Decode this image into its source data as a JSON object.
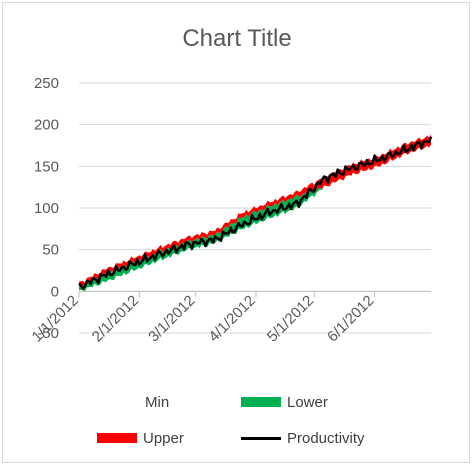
{
  "chart_data": {
    "type": "area",
    "title": "Chart Title",
    "xlabel": "",
    "ylabel": "",
    "ylim": [
      -50,
      250
    ],
    "yticks": [
      -50,
      0,
      50,
      100,
      150,
      200,
      250
    ],
    "grid": true,
    "legend_position": "bottom",
    "x_tick_labels": [
      "1/1/2012",
      "2/1/2012",
      "3/1/2012",
      "4/1/2012",
      "5/1/2012",
      "6/1/2012"
    ],
    "x_tick_days": [
      0,
      31,
      60,
      91,
      121,
      152
    ],
    "x_range_days": [
      0,
      181
    ],
    "x": [
      "1/1/2012",
      "1/15/2012",
      "1/29/2012",
      "2/12/2012",
      "2/26/2012",
      "3/11/2012",
      "3/25/2012",
      "4/8/2012",
      "4/22/2012",
      "5/6/2012",
      "5/20/2012",
      "6/3/2012",
      "6/17/2012",
      "6/30/2012"
    ],
    "series": [
      {
        "name": "Min",
        "color": "#ffffff",
        "values": [
          0,
          12,
          25,
          38,
          50,
          58,
          75,
          88,
          100,
          125,
          140,
          150,
          165,
          175
        ]
      },
      {
        "name": "Lower",
        "color": "#00b050",
        "values": [
          5,
          10,
          10,
          10,
          10,
          10,
          14,
          14,
          14,
          0,
          0,
          0,
          0,
          0
        ]
      },
      {
        "name": "Upper",
        "color": "#ff0000",
        "values": [
          5,
          5,
          5,
          5,
          5,
          5,
          5,
          5,
          5,
          12,
          12,
          12,
          12,
          12
        ]
      },
      {
        "name": "Productivity",
        "color": "#000000",
        "values": [
          5,
          20,
          33,
          45,
          56,
          62,
          80,
          95,
          105,
          135,
          148,
          158,
          170,
          182
        ]
      }
    ]
  }
}
